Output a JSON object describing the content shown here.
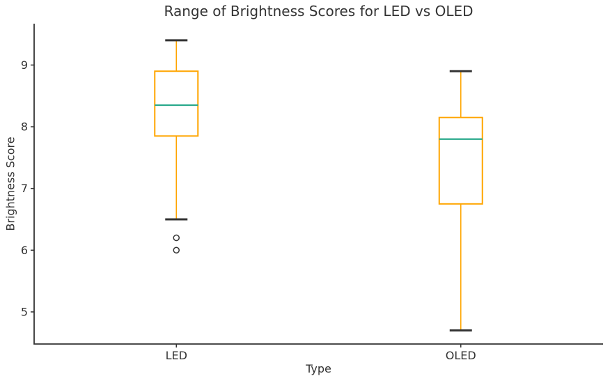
{
  "chart_data": {
    "type": "box",
    "title": "Range of Brightness Scores for LED vs OLED",
    "xlabel": "Type",
    "ylabel": "Brightness Score",
    "categories": [
      "LED",
      "OLED"
    ],
    "series": [
      {
        "label": "LED",
        "whisker_low": 6.5,
        "q1": 7.85,
        "median": 8.35,
        "q3": 8.9,
        "whisker_high": 9.4,
        "outliers": [
          6.2,
          6.0
        ]
      },
      {
        "label": "OLED",
        "whisker_low": 4.7,
        "q1": 6.75,
        "median": 7.8,
        "q3": 8.15,
        "whisker_high": 8.9,
        "outliers": []
      }
    ],
    "ylim": [
      4.48,
      9.67
    ],
    "yticks": [
      5,
      6,
      7,
      8,
      9
    ],
    "grid": false,
    "legend": "none",
    "box_color": "#FFA500",
    "median_color": "#2AA98C",
    "cap_color": "#333333",
    "flier_color": "#333333",
    "axis_color": "#333333"
  }
}
